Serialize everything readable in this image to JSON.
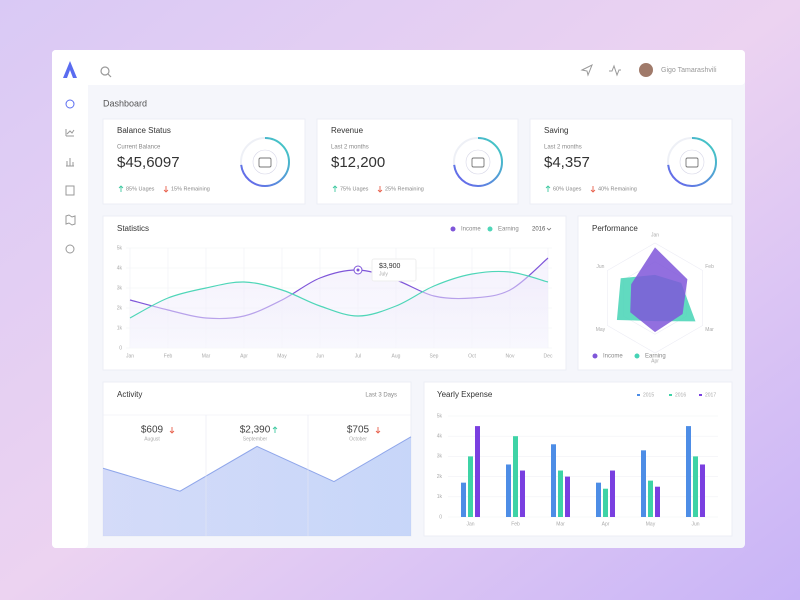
{
  "app": {
    "user_name": "Gigo Tamarashvili",
    "page_title": "Dashboard"
  },
  "cards": [
    {
      "title": "Balance Status",
      "subtitle": "Current Balance",
      "amount": "$45,6097",
      "usage": "85% Uages",
      "remaining": "15% Remaining"
    },
    {
      "title": "Revenue",
      "subtitle": "Last 2 months",
      "amount": "$12,200",
      "usage": "75% Uages",
      "remaining": "25% Remaining"
    },
    {
      "title": "Saving",
      "subtitle": "Last 2 months",
      "amount": "$4,357",
      "usage": "60% Uages",
      "remaining": "40% Remaining"
    }
  ],
  "statistics": {
    "chart_data": {
      "type": "line",
      "title": "Statistics",
      "year": "2016",
      "categories": [
        "Jan",
        "Feb",
        "Mar",
        "Apr",
        "May",
        "Jun",
        "Jul",
        "Aug",
        "Sep",
        "Oct",
        "Nov",
        "Dec"
      ],
      "series": [
        {
          "name": "Income",
          "color": "#7f56d9",
          "values": [
            2400,
            1900,
            1500,
            1600,
            2400,
            3500,
            3900,
            3400,
            2600,
            2500,
            2900,
            4500
          ]
        },
        {
          "name": "Earning",
          "color": "#4fd6b8",
          "values": [
            1500,
            2500,
            3000,
            3300,
            2900,
            2100,
            1600,
            2100,
            3100,
            3700,
            3800,
            3300
          ]
        }
      ],
      "ylim": [
        0,
        5000
      ],
      "yticks": [
        0,
        {
          "value": 1000,
          "label": "1k"
        },
        {
          "value": 2000,
          "label": "2k"
        },
        {
          "value": 3000,
          "label": "3k"
        },
        {
          "value": 4000,
          "label": "4k"
        },
        {
          "value": 5000,
          "label": "5k"
        }
      ],
      "grid": true,
      "annotation": {
        "value_label": "$3,900",
        "label": "July"
      }
    }
  },
  "performance": {
    "chart_data": {
      "type": "radar",
      "title": "Performance",
      "categories": [
        "Jan",
        "Feb",
        "Mar",
        "Apr",
        "May",
        "Jun"
      ],
      "series": [
        {
          "name": "Income",
          "color": "#7f56d9",
          "values": [
            92,
            68,
            58,
            62,
            52,
            50
          ]
        },
        {
          "name": "Earning",
          "color": "#45d3b5",
          "values": [
            42,
            55,
            85,
            42,
            80,
            72
          ]
        }
      ],
      "rlim": [
        0,
        100
      ]
    }
  },
  "activity": {
    "title": "Activity",
    "period": "Last 3 Days",
    "stats": [
      {
        "amount": "$609",
        "month": "August",
        "trend": "down"
      },
      {
        "amount": "$2,390",
        "month": "September",
        "trend": "up"
      },
      {
        "amount": "$705",
        "month": "October",
        "trend": "down"
      }
    ],
    "chart_data": {
      "type": "area",
      "values": [
        56,
        37,
        74,
        45,
        82
      ],
      "ylim": [
        0,
        100
      ],
      "color": "#8fa6ea"
    }
  },
  "expense": {
    "chart_data": {
      "type": "bar",
      "title": "Yearly Expense",
      "categories": [
        "Jan",
        "Feb",
        "Mar",
        "Apr",
        "May",
        "Jun"
      ],
      "series": [
        {
          "name": "2015",
          "color": "#4d8de6",
          "values": [
            1700,
            2600,
            3600,
            1700,
            3300,
            4500
          ]
        },
        {
          "name": "2016",
          "color": "#3ed3a6",
          "values": [
            3000,
            4000,
            2300,
            1400,
            1800,
            3000
          ]
        },
        {
          "name": "2017",
          "color": "#7a3fe0",
          "values": [
            4500,
            2300,
            2000,
            2300,
            1500,
            2600
          ]
        }
      ],
      "ylim": [
        0,
        5000
      ],
      "yticks": [
        0,
        {
          "value": 1000,
          "label": "1k"
        },
        {
          "value": 2000,
          "label": "2k"
        },
        {
          "value": 3000,
          "label": "3k"
        },
        {
          "value": 4000,
          "label": "4k"
        },
        {
          "value": 5000,
          "label": "5k"
        }
      ],
      "grid": true
    }
  }
}
